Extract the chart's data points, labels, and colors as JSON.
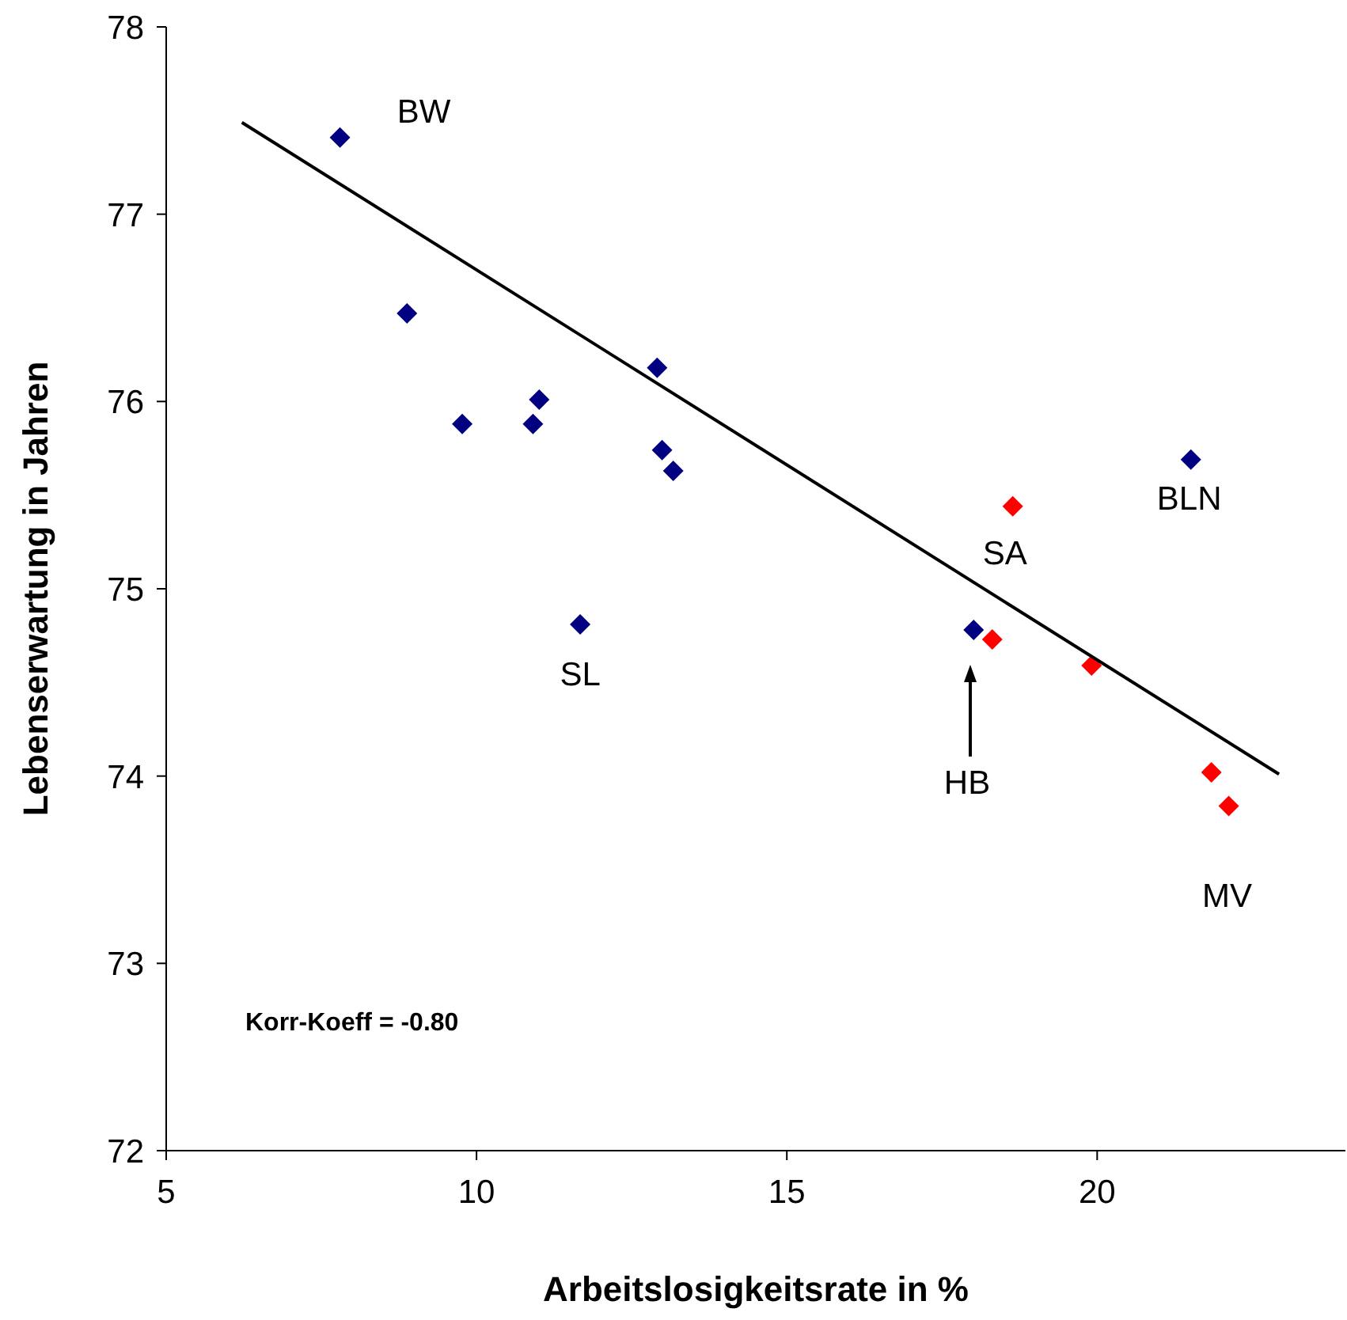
{
  "chart_data": {
    "type": "scatter",
    "xlabel": "Arbeitslosigkeitsrate in %",
    "ylabel": "Lebenserwartung in Jahren",
    "xlim": [
      5,
      24
    ],
    "xticks": [
      5,
      10,
      15,
      20
    ],
    "ylim": [
      72,
      78
    ],
    "yticks": [
      72,
      73,
      74,
      75,
      76,
      77,
      78
    ],
    "grid": false,
    "marker": "diamond",
    "series": [
      {
        "color": "#000080",
        "x": [
          7.8,
          8.88,
          9.77,
          10.91,
          11.01,
          12.91,
          12.99,
          13.17,
          11.67,
          18.01,
          21.51
        ],
        "values": [
          77.41,
          76.47,
          75.88,
          75.88,
          76.01,
          76.18,
          75.74,
          75.63,
          74.81,
          74.78,
          75.69
        ]
      },
      {
        "color": "#ff0000",
        "x": [
          18.64,
          18.31,
          19.91,
          21.84,
          22.12
        ],
        "values": [
          75.44,
          74.73,
          74.59,
          74.02,
          73.84
        ]
      },
      {
        "type": "line",
        "marker": "none",
        "color": "#000000",
        "x": [
          6.22,
          22.93
        ],
        "values": [
          77.49,
          74.01
        ]
      }
    ],
    "annotations": [
      {
        "text": "BW",
        "x": 7.8,
        "y": 77.41
      },
      {
        "text": "SL",
        "x": 11.67,
        "y": 74.81
      },
      "HB",
      {
        "text": "SA",
        "x": 18.64,
        "y": 75.44
      },
      {
        "text": "BLN",
        "x": 21.51,
        "y": 75.69
      },
      {
        "text": "MV",
        "x": 22.12,
        "y": 73.84
      },
      "Korr-Koeff = -0.80"
    ]
  }
}
